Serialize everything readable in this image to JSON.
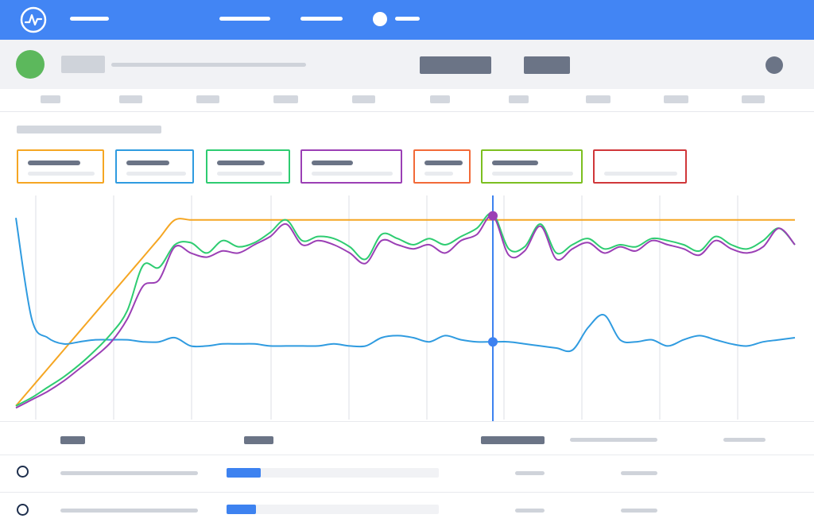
{
  "colors": {
    "brand": "#4285f4",
    "orange": "#f5a623",
    "blue": "#2f9be0",
    "green": "#2ecc71",
    "purple": "#9b3fb5",
    "cursor": "#3d82f0"
  },
  "header": {
    "logo_icon": "wave-logo-icon",
    "avatar_icon": "avatar-circle-icon"
  },
  "subheader": {
    "status_icon": "status-dot-icon",
    "user_icon": "user-circle-icon"
  },
  "table": {
    "rows": [
      {
        "progress": 0.16
      },
      {
        "progress": 0.14
      }
    ]
  },
  "chart_data": {
    "type": "line",
    "x": [
      0,
      1,
      2,
      3,
      4,
      5,
      6,
      7,
      8,
      9,
      10,
      11,
      12,
      13,
      14,
      15,
      16,
      17,
      18,
      19,
      20,
      21,
      22,
      23,
      24,
      25,
      26,
      27,
      28,
      29,
      30,
      31,
      32,
      33,
      34,
      35,
      36,
      37,
      38,
      39,
      40,
      41,
      42,
      43,
      44,
      45,
      46,
      47,
      48,
      49
    ],
    "series": [
      {
        "color": "#f5a623",
        "values": [
          2,
          11,
          20,
          29,
          38,
          47,
          56,
          65,
          74,
          83,
          92,
          92,
          92,
          92,
          92,
          92,
          92,
          92,
          92,
          92,
          92,
          92,
          92,
          92,
          92,
          92,
          92,
          92,
          92,
          92,
          92,
          92,
          92,
          92,
          92,
          92,
          92,
          92,
          92,
          92,
          92,
          92,
          92,
          92,
          92,
          92,
          92,
          92,
          92,
          92
        ]
      },
      {
        "color": "#2ecc71",
        "values": [
          2,
          6,
          11,
          16,
          22,
          29,
          37,
          48,
          70,
          69,
          80,
          81,
          76,
          82,
          79,
          81,
          86,
          92,
          82,
          84,
          83,
          79,
          73,
          85,
          83,
          80,
          83,
          80,
          84,
          88,
          95,
          78,
          79,
          90,
          76,
          80,
          83,
          78,
          80,
          79,
          83,
          82,
          80,
          77,
          84,
          80,
          78,
          82,
          88,
          80
        ]
      },
      {
        "color": "#9b3fb5",
        "values": [
          1,
          5,
          9,
          14,
          20,
          26,
          33,
          44,
          60,
          63,
          79,
          76,
          74,
          77,
          76,
          80,
          84,
          90,
          80,
          82,
          80,
          76,
          71,
          82,
          80,
          78,
          80,
          76,
          82,
          85,
          94,
          75,
          77,
          89,
          73,
          78,
          81,
          76,
          79,
          77,
          82,
          80,
          78,
          75,
          82,
          78,
          76,
          79,
          88,
          80
        ]
      },
      {
        "color": "#2f9be0",
        "values": [
          93,
          44,
          35,
          32,
          33,
          34,
          34,
          34,
          33,
          33,
          35,
          31,
          31,
          32,
          32,
          32,
          31,
          31,
          31,
          31,
          32,
          31,
          31,
          35,
          36,
          35,
          33,
          36,
          34,
          33,
          33,
          33,
          32,
          31,
          30,
          29,
          40,
          46,
          34,
          33,
          34,
          31,
          34,
          36,
          34,
          32,
          31,
          33,
          34,
          35
        ]
      }
    ],
    "ylim": [
      0,
      100
    ],
    "grid": true,
    "cursor": {
      "x": 30,
      "markers": [
        {
          "series": 2,
          "value": 94
        },
        {
          "series": 3,
          "value": 33
        }
      ]
    }
  }
}
